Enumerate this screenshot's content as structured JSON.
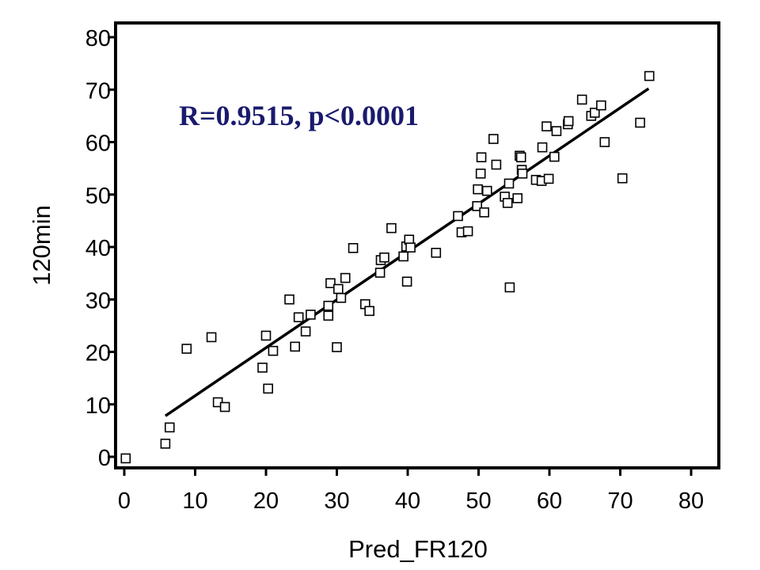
{
  "chart_data": {
    "type": "scatter",
    "xlabel": "Pred_FR120",
    "ylabel": "120min",
    "xlim": [
      0,
      80
    ],
    "ylim": [
      0,
      80
    ],
    "x_ticks": [
      "0",
      "10",
      "20",
      "30",
      "40",
      "50",
      "60",
      "70",
      "80"
    ],
    "y_ticks": [
      "0",
      "10",
      "20",
      "30",
      "40",
      "50",
      "60",
      "70",
      "80"
    ],
    "grid": false,
    "annotation": "R=0.9515,  p<0.0001",
    "annotation_color": "#1a1a6e",
    "marker": "open-square",
    "fit_line": {
      "x": [
        5.8,
        74.0
      ],
      "y": [
        7.8,
        70.2
      ]
    },
    "points": [
      [
        0.2,
        -0.3
      ],
      [
        5.8,
        2.5
      ],
      [
        6.4,
        5.6
      ],
      [
        8.8,
        20.6
      ],
      [
        12.3,
        22.8
      ],
      [
        13.2,
        10.4
      ],
      [
        14.2,
        9.5
      ],
      [
        19.5,
        17.0
      ],
      [
        20.0,
        23.1
      ],
      [
        20.3,
        13.0
      ],
      [
        21.0,
        20.2
      ],
      [
        23.3,
        30.0
      ],
      [
        24.1,
        21.0
      ],
      [
        24.6,
        26.6
      ],
      [
        25.6,
        23.9
      ],
      [
        26.3,
        27.1
      ],
      [
        28.8,
        28.8
      ],
      [
        28.8,
        26.9
      ],
      [
        29.1,
        33.1
      ],
      [
        30.0,
        20.9
      ],
      [
        30.2,
        32.0
      ],
      [
        30.6,
        30.3
      ],
      [
        31.2,
        34.1
      ],
      [
        32.3,
        39.8
      ],
      [
        34.0,
        29.1
      ],
      [
        34.6,
        27.8
      ],
      [
        36.1,
        35.1
      ],
      [
        36.2,
        37.5
      ],
      [
        36.7,
        38.0
      ],
      [
        37.7,
        43.6
      ],
      [
        39.4,
        38.2
      ],
      [
        39.8,
        40.1
      ],
      [
        39.9,
        33.4
      ],
      [
        40.2,
        41.4
      ],
      [
        40.4,
        39.9
      ],
      [
        44.0,
        38.9
      ],
      [
        47.1,
        45.9
      ],
      [
        47.6,
        42.8
      ],
      [
        48.5,
        43.0
      ],
      [
        49.8,
        47.8
      ],
      [
        49.9,
        51.0
      ],
      [
        50.3,
        54.0
      ],
      [
        50.4,
        57.1
      ],
      [
        50.8,
        46.6
      ],
      [
        51.2,
        50.7
      ],
      [
        52.1,
        60.6
      ],
      [
        52.5,
        55.7
      ],
      [
        53.7,
        49.6
      ],
      [
        54.1,
        48.4
      ],
      [
        54.3,
        52.1
      ],
      [
        54.4,
        32.3
      ],
      [
        55.5,
        49.3
      ],
      [
        55.8,
        57.4
      ],
      [
        56.0,
        57.1
      ],
      [
        56.1,
        54.7
      ],
      [
        56.2,
        54.0
      ],
      [
        58.1,
        52.8
      ],
      [
        58.9,
        52.6
      ],
      [
        59.0,
        59.0
      ],
      [
        59.6,
        63.0
      ],
      [
        59.9,
        53.0
      ],
      [
        60.7,
        57.2
      ],
      [
        61.0,
        62.1
      ],
      [
        62.6,
        63.4
      ],
      [
        62.7,
        64.0
      ],
      [
        64.6,
        68.1
      ],
      [
        65.9,
        65.0
      ],
      [
        66.4,
        65.6
      ],
      [
        67.3,
        67.0
      ],
      [
        67.8,
        60.0
      ],
      [
        70.3,
        53.1
      ],
      [
        72.8,
        63.7
      ],
      [
        74.1,
        72.6
      ]
    ]
  }
}
